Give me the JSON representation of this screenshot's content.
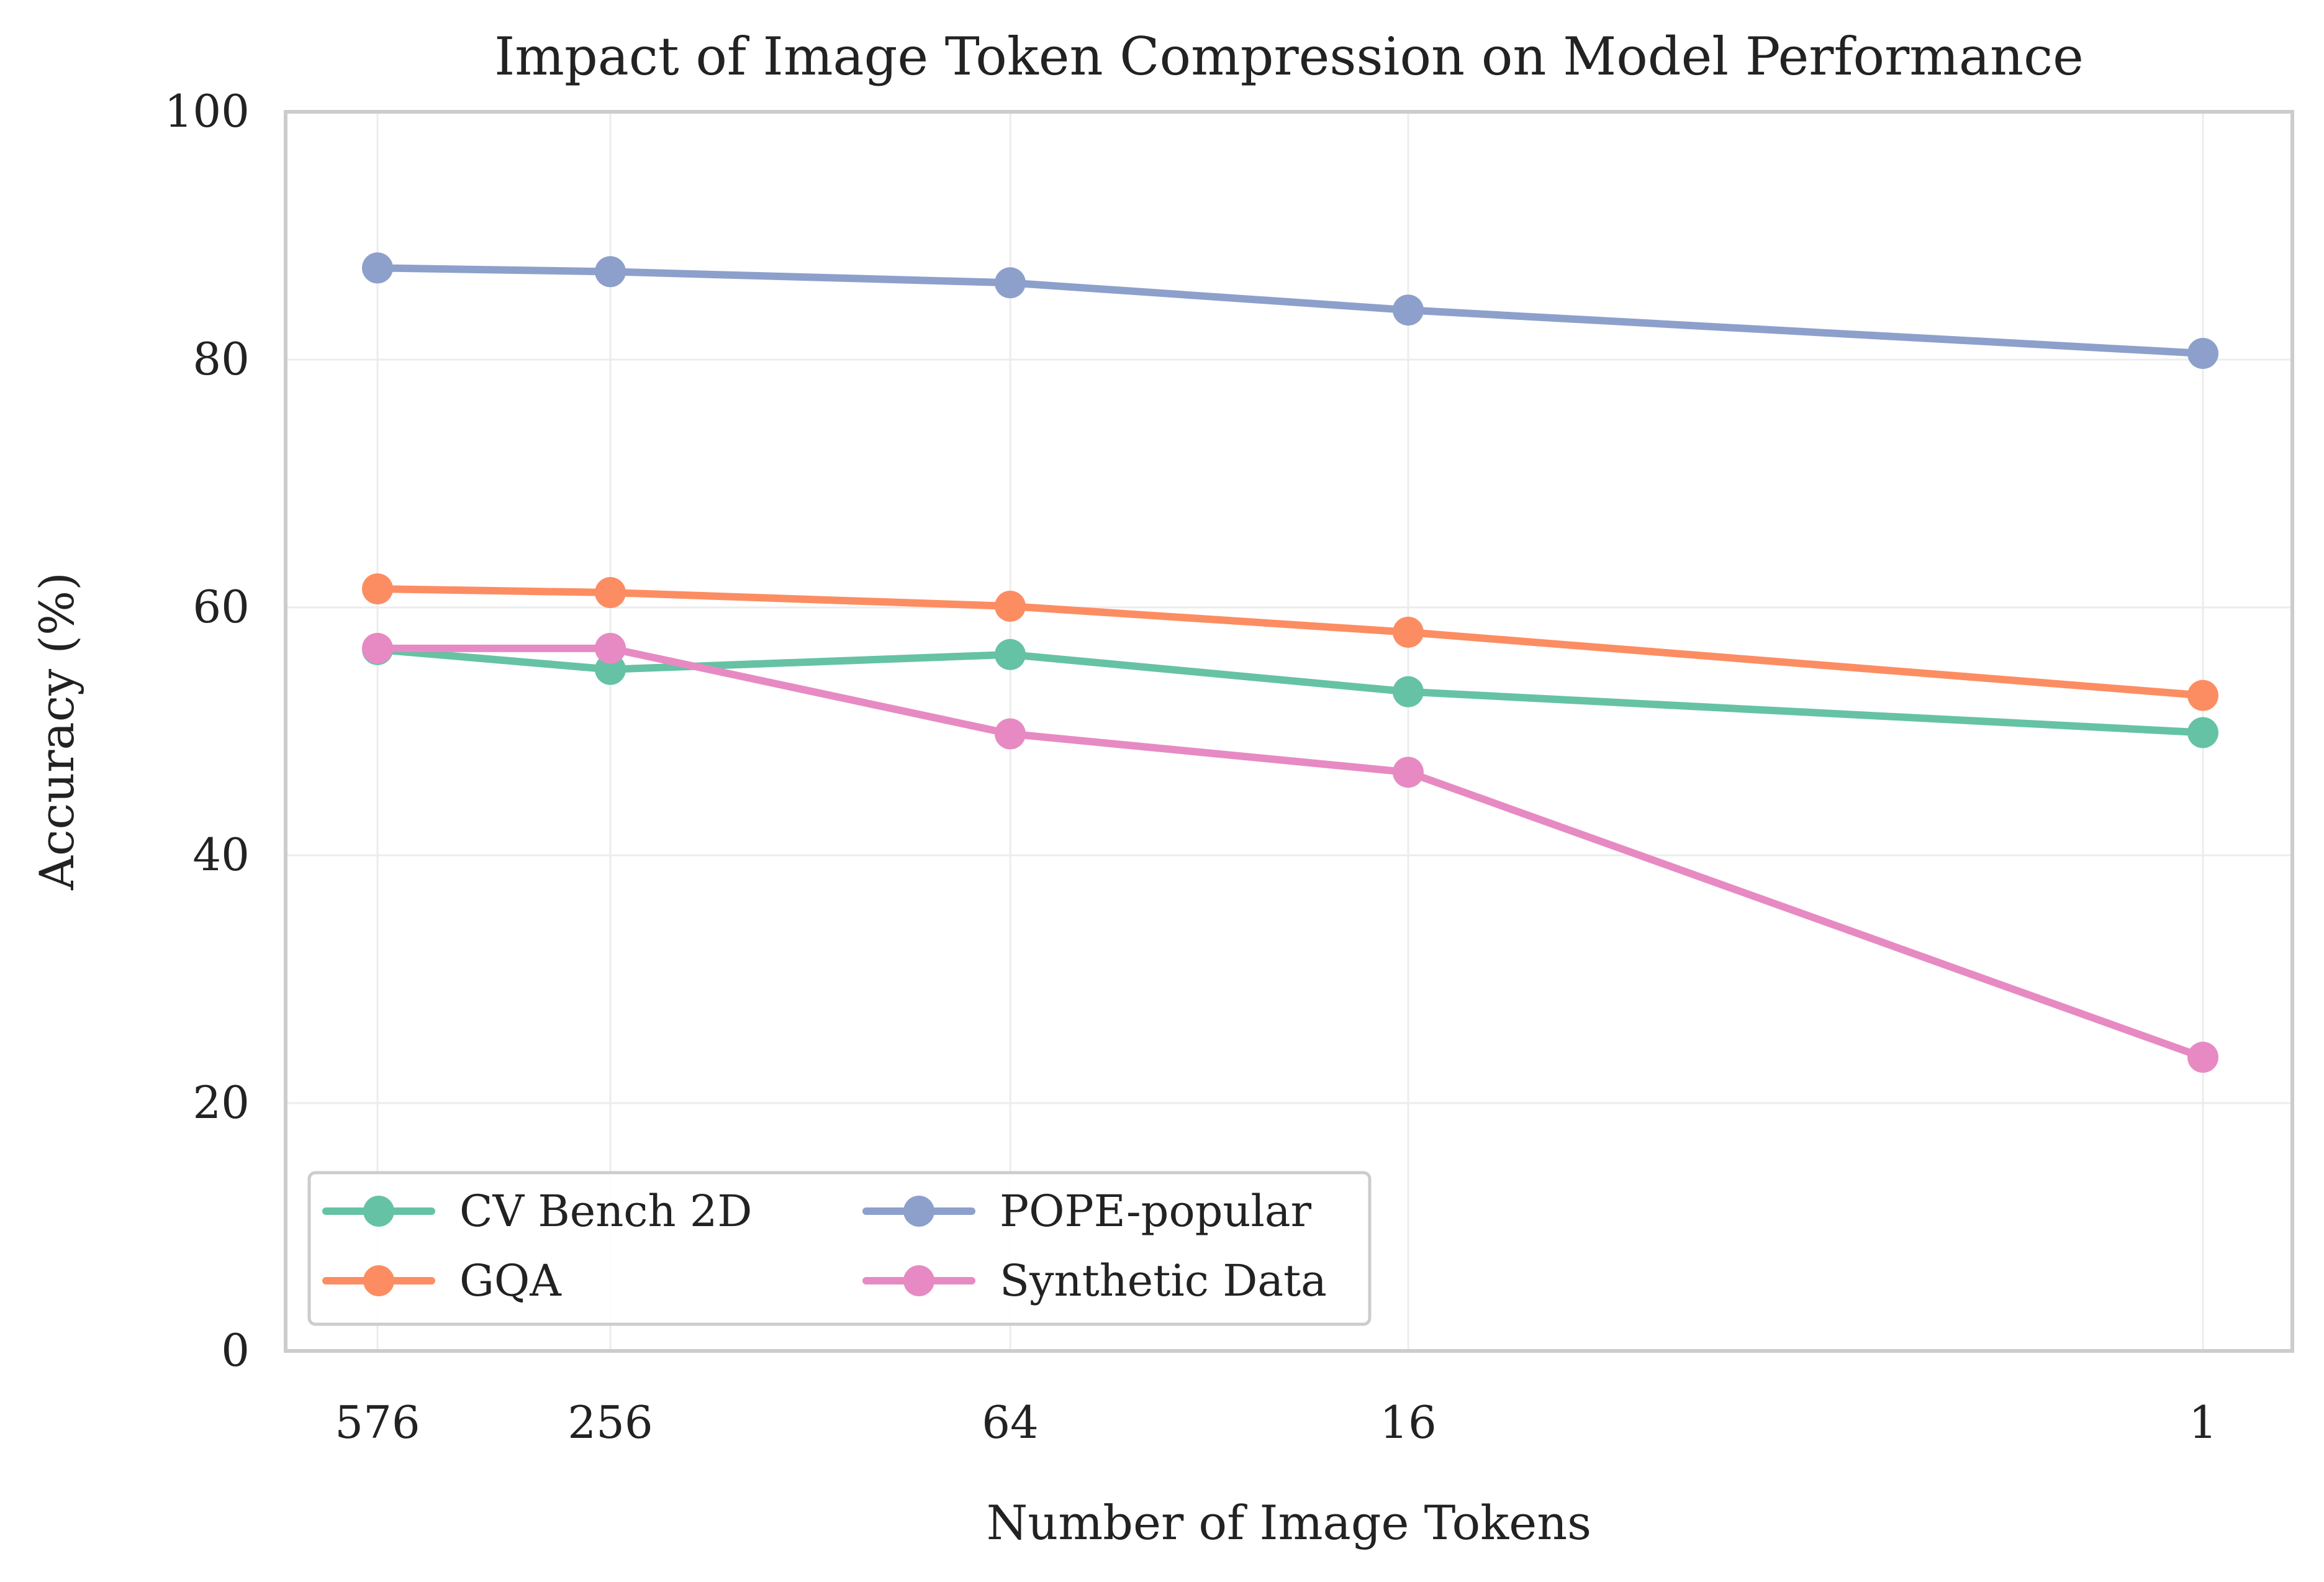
{
  "chart_data": {
    "type": "line",
    "title": "Impact of Image Token Compression on Model Performance",
    "xlabel": "Number of Image Tokens",
    "ylabel": "Accuracy (%)",
    "ylim": [
      0,
      100
    ],
    "yticks": [
      "0",
      "20",
      "40",
      "60",
      "80",
      "100"
    ],
    "categories": [
      "576",
      "256",
      "64",
      "16",
      "1"
    ],
    "grid": true,
    "legend_position": "lower-left",
    "series": [
      {
        "name": "CV Bench 2D",
        "color": "#66c2a5",
        "values": [
          56.6,
          55.0,
          56.2,
          53.2,
          49.9
        ]
      },
      {
        "name": "GQA",
        "color": "#fc8d62",
        "values": [
          61.5,
          61.2,
          60.1,
          58.0,
          52.9
        ]
      },
      {
        "name": "POPE-popular",
        "color": "#8da0cb",
        "values": [
          87.4,
          87.1,
          86.2,
          84.0,
          80.5
        ]
      },
      {
        "name": "Synthetic Data",
        "color": "#e78ac3",
        "values": [
          56.7,
          56.7,
          49.8,
          46.7,
          23.7
        ]
      }
    ]
  }
}
